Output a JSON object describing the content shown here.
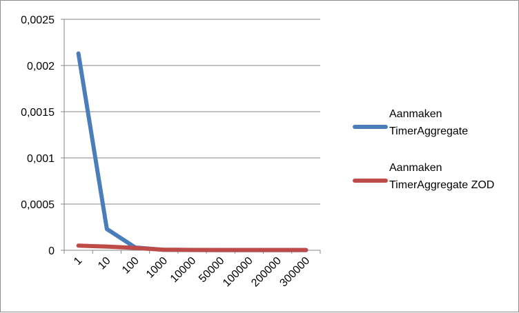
{
  "chart_data": {
    "type": "line",
    "title": "",
    "xlabel": "",
    "ylabel": "",
    "categories": [
      "1",
      "10",
      "100",
      "1000",
      "10000",
      "50000",
      "100000",
      "200000",
      "300000"
    ],
    "ylim": [
      0,
      0.0025
    ],
    "yticks": [
      0,
      0.0005,
      0.001,
      0.0015,
      0.002,
      0.0025
    ],
    "ytick_labels": [
      "0",
      "0,0005",
      "0,001",
      "0,0015",
      "0,002",
      "0,0025"
    ],
    "grid": true,
    "legend_position": "right",
    "series": [
      {
        "name": "Aanmaken TimerAggregate",
        "name_lines": [
          "Aanmaken",
          "TimerAggregate"
        ],
        "color": "#4a7ebb",
        "values": [
          0.00213,
          0.00023,
          3e-05,
          5e-06,
          3e-06,
          2e-06,
          2e-06,
          2e-06,
          2e-06
        ]
      },
      {
        "name": "Aanmaken TimerAggregate ZOD",
        "name_lines": [
          "Aanmaken",
          "TimerAggregate ZOD"
        ],
        "color": "#be4b48",
        "values": [
          5e-05,
          4e-05,
          2.5e-05,
          6e-06,
          4e-06,
          3e-06,
          3e-06,
          3e-06,
          3e-06
        ]
      }
    ]
  }
}
